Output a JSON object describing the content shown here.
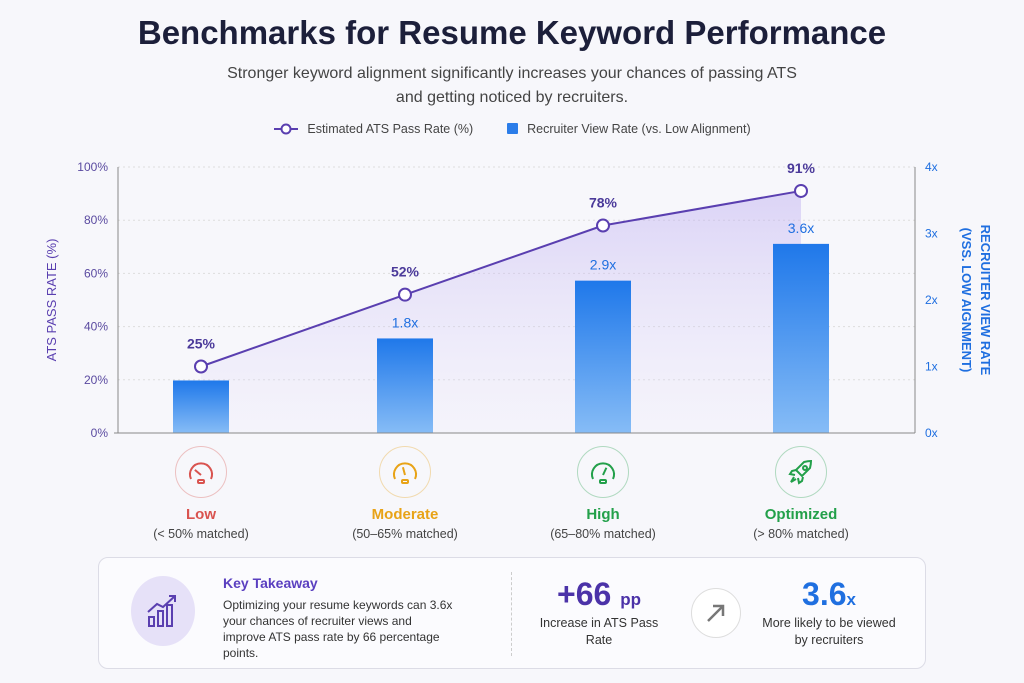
{
  "header": {
    "title": "Benchmarks for Resume Keyword Performance",
    "subtitle": "Stronger keyword alignment significantly increases your chances of passing ATS and getting noticed by recruiters."
  },
  "chart_data": {
    "type": "bar+line",
    "categories": [
      "Low",
      "Moderate",
      "High",
      "Optimized"
    ],
    "series": [
      {
        "name": "Estimated ATS Pass Rate (%)",
        "type": "line",
        "axis": "left",
        "values": [
          25,
          52,
          78,
          91
        ],
        "labels": [
          "25%",
          "52%",
          "78%",
          "91%"
        ],
        "color": "#5a3fb0"
      },
      {
        "name": "Recruiter View Rate (vs. Low Alignment)",
        "type": "bar",
        "axis": "right",
        "values": [
          1.0,
          1.8,
          2.9,
          3.6
        ],
        "labels": [
          "",
          "1.8x",
          "2.9x",
          "3.6x"
        ],
        "color": "#2b7de9"
      }
    ],
    "ylabel_left": "ATS PASS RATE (%)",
    "ylim_left": [
      0,
      100
    ],
    "yticks_left": [
      "0%",
      "20%",
      "40%",
      "60%",
      "80%",
      "100%"
    ],
    "ylabel_right": "RECRUITER VIEW RATE",
    "ylabel_right2": "(VSS. LOW AIGNMENT)",
    "ylim_right": [
      0,
      4
    ],
    "yticks_right": [
      "0x",
      "1x",
      "2x",
      "3x",
      "4x"
    ],
    "grid": true,
    "legend": "top-center"
  },
  "categories": [
    {
      "label": "Low",
      "range": "(< 50% matched)",
      "color": "#d9534f",
      "icon": "gauge-low-icon"
    },
    {
      "label": "Moderate",
      "range": "(50–65% matched)",
      "color": "#e8a317",
      "icon": "gauge-moderate-icon"
    },
    {
      "label": "High",
      "range": "(65–80% matched)",
      "color": "#23a04a",
      "icon": "gauge-high-icon"
    },
    {
      "label": "Optimized",
      "range": "(> 80% matched)",
      "color": "#23a04a",
      "icon": "rocket-icon"
    }
  ],
  "takeaway": {
    "title": "Key Takeaway",
    "text": "Optimizing your resume keywords can 3.6x your chances of recruiter views and improve ATS pass rate by 66 percentage points.",
    "stat1": {
      "value": "+66",
      "unit": "pp",
      "desc": "Increase in ATS Pass Rate"
    },
    "stat2": {
      "value": "3.6",
      "unit": "x",
      "desc": "More likely to be viewed by recruiters"
    }
  }
}
